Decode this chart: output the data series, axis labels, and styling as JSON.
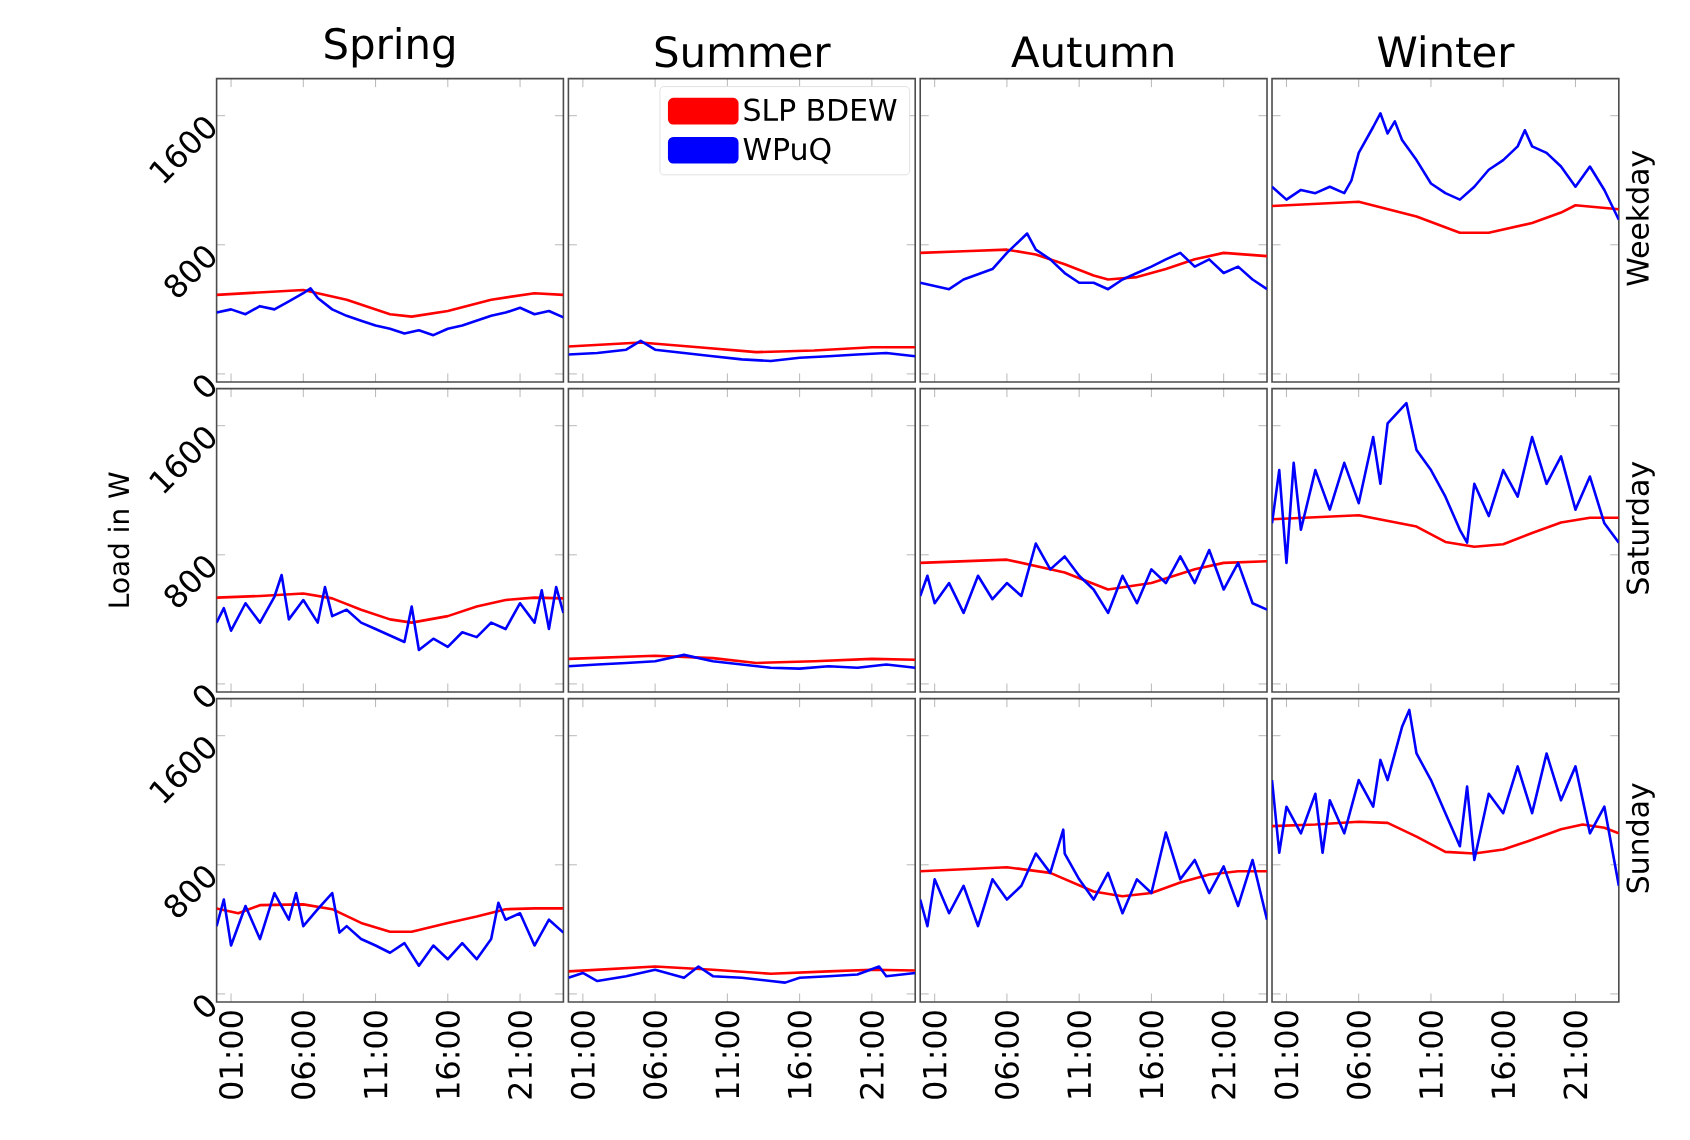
{
  "chart_data": [
    {
      "type": "line",
      "title": "Spring",
      "tick_labels": "y",
      "xlim": [
        0,
        24
      ],
      "ylim": [
        -50,
        1830
      ],
      "xticks": [
        1,
        6,
        11,
        16,
        21
      ],
      "yticks": [
        0,
        800,
        1600
      ],
      "series": [
        {
          "color": "#ff0000",
          "x": [
            0,
            3,
            6,
            9,
            12,
            13.5,
            16,
            19,
            22,
            24
          ],
          "values": [
            490,
            505,
            520,
            460,
            370,
            355,
            390,
            460,
            500,
            490
          ]
        },
        {
          "color": "#0000ff",
          "x": [
            0,
            1,
            2,
            3,
            4,
            5,
            6,
            6.5,
            7,
            8,
            9,
            10,
            11,
            12,
            13,
            14,
            15,
            16,
            17,
            18,
            19,
            20,
            21,
            22,
            23,
            24
          ],
          "values": [
            380,
            400,
            370,
            420,
            400,
            450,
            500,
            530,
            470,
            400,
            360,
            330,
            300,
            280,
            250,
            270,
            240,
            280,
            300,
            330,
            360,
            380,
            410,
            370,
            390,
            350
          ]
        }
      ]
    },
    {
      "type": "line",
      "title": "Summer",
      "tick_labels": false,
      "legend": "top right",
      "xlim": [
        0,
        24
      ],
      "ylim": [
        -50,
        1830
      ],
      "xticks": [
        1,
        6,
        11,
        16,
        21
      ],
      "yticks": [
        0,
        800,
        1600
      ],
      "series": [
        {
          "name": "SLP BDEW",
          "color": "#ff0000",
          "x": [
            0,
            5,
            9,
            13,
            17,
            21,
            24
          ],
          "values": [
            170,
            195,
            165,
            135,
            145,
            165,
            165
          ]
        },
        {
          "name": "WPuQ",
          "color": "#0000ff",
          "x": [
            0,
            2,
            4,
            5,
            6,
            8,
            10,
            12,
            14,
            16,
            18,
            20,
            22,
            24
          ],
          "values": [
            120,
            130,
            150,
            205,
            150,
            130,
            110,
            90,
            80,
            100,
            110,
            120,
            130,
            110
          ]
        }
      ]
    },
    {
      "type": "line",
      "title": "Autumn",
      "tick_labels": false,
      "xlim": [
        0,
        24
      ],
      "ylim": [
        -50,
        1830
      ],
      "xticks": [
        1,
        6,
        11,
        16,
        21
      ],
      "yticks": [
        0,
        800,
        1600
      ],
      "series": [
        {
          "color": "#ff0000",
          "x": [
            0,
            3,
            6,
            8,
            10,
            12,
            13,
            15,
            17,
            19,
            21,
            24
          ],
          "values": [
            750,
            760,
            770,
            740,
            680,
            610,
            585,
            600,
            650,
            710,
            750,
            730
          ]
        },
        {
          "color": "#0000ff",
          "x": [
            0,
            2,
            3,
            5,
            6,
            7.4,
            8,
            9,
            10,
            11,
            12,
            13,
            14,
            15,
            16,
            17,
            18,
            19,
            20,
            21,
            22,
            23,
            24
          ],
          "values": [
            565,
            525,
            585,
            650,
            750,
            870,
            770,
            710,
            625,
            565,
            565,
            525,
            585,
            625,
            665,
            710,
            750,
            665,
            710,
            625,
            665,
            585,
            525
          ]
        }
      ]
    },
    {
      "type": "line",
      "title": "Winter",
      "y2label": "Weekday",
      "tick_labels": false,
      "xlim": [
        0,
        24
      ],
      "ylim": [
        -50,
        1830
      ],
      "xticks": [
        1,
        6,
        11,
        16,
        21
      ],
      "yticks": [
        0,
        800,
        1600
      ],
      "series": [
        {
          "color": "#ff0000",
          "x": [
            0,
            6,
            10,
            13,
            15,
            18,
            20,
            21,
            24
          ],
          "values": [
            1040,
            1067,
            975,
            875,
            875,
            935,
            1000,
            1045,
            1020
          ]
        },
        {
          "color": "#0000ff",
          "x": [
            0,
            1,
            2,
            3,
            4,
            5,
            5.5,
            6,
            7,
            7.5,
            8,
            8.5,
            9,
            10,
            11,
            12,
            13,
            14,
            15,
            16,
            17,
            17.5,
            18,
            19,
            20,
            21,
            22,
            23,
            24
          ],
          "values": [
            1160,
            1080,
            1140,
            1120,
            1160,
            1120,
            1200,
            1370,
            1530,
            1615,
            1490,
            1565,
            1450,
            1325,
            1180,
            1120,
            1080,
            1160,
            1265,
            1325,
            1410,
            1510,
            1410,
            1370,
            1285,
            1160,
            1285,
            1140,
            955
          ]
        }
      ]
    },
    {
      "type": "line",
      "ylabel": "Load in W",
      "tick_labels": "y",
      "xlim": [
        0,
        24
      ],
      "ylim": [
        -50,
        1830
      ],
      "xticks": [
        1,
        6,
        11,
        16,
        21
      ],
      "yticks": [
        0,
        800,
        1600
      ],
      "series": [
        {
          "color": "#ff0000",
          "x": [
            0,
            3,
            6,
            8,
            10,
            12,
            13.5,
            16,
            18,
            20,
            22,
            24
          ],
          "values": [
            535,
            545,
            560,
            530,
            460,
            400,
            380,
            420,
            480,
            520,
            535,
            530
          ]
        },
        {
          "color": "#0000ff",
          "x": [
            0,
            0.5,
            1,
            2,
            3,
            4,
            4.5,
            5,
            6,
            7,
            7.5,
            8,
            9,
            10,
            11,
            12,
            13,
            13.5,
            14,
            15,
            16,
            17,
            18,
            19,
            20,
            21,
            22,
            22.5,
            23,
            23.5,
            24
          ],
          "values": [
            380,
            470,
            330,
            500,
            380,
            540,
            675,
            400,
            520,
            380,
            600,
            420,
            460,
            380,
            340,
            300,
            260,
            480,
            210,
            280,
            230,
            320,
            290,
            380,
            340,
            500,
            380,
            580,
            340,
            600,
            440
          ]
        }
      ]
    },
    {
      "type": "line",
      "tick_labels": false,
      "xlim": [
        0,
        24
      ],
      "ylim": [
        -50,
        1830
      ],
      "xticks": [
        1,
        6,
        11,
        16,
        21
      ],
      "yticks": [
        0,
        800,
        1600
      ],
      "series": [
        {
          "color": "#ff0000",
          "x": [
            0,
            6,
            10,
            13,
            17,
            21,
            24
          ],
          "values": [
            155,
            175,
            160,
            130,
            140,
            155,
            150
          ]
        },
        {
          "color": "#0000ff",
          "x": [
            0,
            2,
            4,
            6,
            8,
            10,
            12,
            14,
            16,
            18,
            20,
            22,
            24
          ],
          "values": [
            110,
            120,
            130,
            140,
            180,
            140,
            120,
            100,
            95,
            110,
            100,
            120,
            100
          ]
        }
      ]
    },
    {
      "type": "line",
      "tick_labels": false,
      "xlim": [
        0,
        24
      ],
      "ylim": [
        -50,
        1830
      ],
      "xticks": [
        1,
        6,
        11,
        16,
        21
      ],
      "yticks": [
        0,
        800,
        1600
      ],
      "series": [
        {
          "color": "#ff0000",
          "x": [
            0,
            6,
            10,
            13,
            16,
            19,
            21,
            24
          ],
          "values": [
            750,
            770,
            690,
            585,
            625,
            710,
            750,
            760
          ]
        },
        {
          "color": "#0000ff",
          "x": [
            0,
            0.5,
            1,
            2,
            3,
            4,
            5,
            6,
            7,
            8,
            9,
            10,
            11,
            12,
            13,
            14,
            15,
            16,
            17,
            18,
            19,
            20,
            21,
            22,
            23,
            24
          ],
          "values": [
            545,
            670,
            500,
            625,
            440,
            670,
            525,
            625,
            545,
            870,
            710,
            790,
            670,
            585,
            440,
            670,
            500,
            710,
            625,
            790,
            625,
            830,
            585,
            750,
            500,
            460
          ]
        }
      ]
    },
    {
      "type": "line",
      "y2label": "Saturday",
      "tick_labels": false,
      "xlim": [
        0,
        24
      ],
      "ylim": [
        -50,
        1830
      ],
      "xticks": [
        1,
        6,
        11,
        16,
        21
      ],
      "yticks": [
        0,
        800,
        1600
      ],
      "series": [
        {
          "color": "#ff0000",
          "x": [
            0,
            6,
            10,
            12,
            14,
            16,
            18,
            20,
            22,
            24
          ],
          "values": [
            1020,
            1045,
            975,
            880,
            850,
            865,
            935,
            1000,
            1030,
            1030
          ]
        },
        {
          "color": "#0000ff",
          "x": [
            0,
            0.5,
            1,
            1.5,
            2,
            3,
            4,
            5,
            6,
            7,
            7.5,
            8,
            9.3,
            10,
            11,
            12,
            13,
            13.5,
            14,
            15,
            16,
            17,
            18,
            19,
            20,
            21,
            22,
            23,
            24
          ],
          "values": [
            995,
            1325,
            750,
            1370,
            955,
            1325,
            1080,
            1370,
            1120,
            1530,
            1240,
            1615,
            1740,
            1450,
            1325,
            1160,
            955,
            875,
            1240,
            1040,
            1325,
            1160,
            1530,
            1240,
            1410,
            1080,
            1285,
            995,
            875
          ]
        }
      ]
    },
    {
      "type": "line",
      "xlim": [
        0,
        24
      ],
      "ylim": [
        -50,
        1830
      ],
      "xticks": [
        {
          "value": 1,
          "label": "01:00"
        },
        {
          "value": 6,
          "label": "06:00"
        },
        {
          "value": 11,
          "label": "11:00"
        },
        {
          "value": 16,
          "label": "16:00"
        },
        {
          "value": 21,
          "label": "21:00"
        }
      ],
      "yticks": [
        0,
        800,
        1600
      ],
      "series": [
        {
          "color": "#ff0000",
          "x": [
            0,
            1.5,
            3,
            6,
            8,
            10,
            12,
            13.5,
            16,
            18,
            20,
            22,
            24
          ],
          "values": [
            530,
            500,
            550,
            555,
            525,
            440,
            385,
            385,
            440,
            480,
            525,
            530,
            530
          ]
        },
        {
          "color": "#0000ff",
          "x": [
            0,
            0.5,
            1,
            2,
            3,
            4,
            5,
            5.5,
            6,
            7,
            8,
            8.5,
            9,
            10,
            11,
            12,
            13,
            14,
            15,
            16,
            17,
            18,
            19,
            19.5,
            20,
            21,
            22,
            23,
            24
          ],
          "values": [
            420,
            585,
            300,
            545,
            340,
            625,
            460,
            625,
            420,
            525,
            625,
            380,
            420,
            340,
            300,
            255,
            315,
            175,
            300,
            215,
            315,
            215,
            340,
            565,
            460,
            500,
            300,
            460,
            380
          ]
        }
      ]
    },
    {
      "type": "line",
      "tick_labels": "x",
      "xlim": [
        0,
        24
      ],
      "ylim": [
        -50,
        1830
      ],
      "xticks": [
        {
          "value": 1,
          "label": "01:00"
        },
        {
          "value": 6,
          "label": "06:00"
        },
        {
          "value": 11,
          "label": "11:00"
        },
        {
          "value": 16,
          "label": "16:00"
        },
        {
          "value": 21,
          "label": "21:00"
        }
      ],
      "yticks": [
        0,
        800,
        1600
      ],
      "series": [
        {
          "color": "#ff0000",
          "x": [
            0,
            6,
            10,
            14,
            18,
            21,
            24
          ],
          "values": [
            140,
            170,
            150,
            125,
            140,
            150,
            145
          ]
        },
        {
          "color": "#0000ff",
          "x": [
            0,
            1,
            2,
            4,
            6,
            8,
            9,
            10,
            12,
            14,
            15,
            16,
            18,
            20,
            21.5,
            22,
            24
          ],
          "values": [
            100,
            130,
            80,
            110,
            150,
            100,
            170,
            110,
            100,
            80,
            70,
            100,
            110,
            120,
            170,
            110,
            130
          ]
        }
      ]
    },
    {
      "type": "line",
      "tick_labels": "x",
      "xlim": [
        0,
        24
      ],
      "ylim": [
        -50,
        1830
      ],
      "xticks": [
        {
          "value": 1,
          "label": "01:00"
        },
        {
          "value": 6,
          "label": "06:00"
        },
        {
          "value": 11,
          "label": "11:00"
        },
        {
          "value": 16,
          "label": "16:00"
        },
        {
          "value": 21,
          "label": "21:00"
        }
      ],
      "yticks": [
        0,
        800,
        1600
      ],
      "series": [
        {
          "color": "#ff0000",
          "x": [
            0,
            6,
            9,
            12,
            14,
            16,
            18,
            20,
            22,
            24
          ],
          "values": [
            760,
            785,
            750,
            635,
            605,
            625,
            690,
            740,
            760,
            760
          ]
        },
        {
          "color": "#0000ff",
          "x": [
            0,
            0.5,
            1,
            2,
            3,
            4,
            5,
            6,
            7,
            8,
            9,
            9.9,
            10,
            11,
            12,
            13,
            14,
            15,
            16,
            17,
            18,
            19,
            20,
            21,
            22,
            23,
            24
          ],
          "values": [
            585,
            420,
            710,
            500,
            670,
            420,
            710,
            585,
            670,
            870,
            750,
            1018,
            870,
            710,
            585,
            750,
            500,
            710,
            625,
            1000,
            710,
            830,
            625,
            790,
            545,
            830,
            460
          ]
        }
      ]
    },
    {
      "type": "line",
      "y2label": "Sunday",
      "tick_labels": "x",
      "xlim": [
        0,
        24
      ],
      "ylim": [
        -50,
        1830
      ],
      "xticks": [
        {
          "value": 1,
          "label": "01:00"
        },
        {
          "value": 6,
          "label": "06:00"
        },
        {
          "value": 11,
          "label": "11:00"
        },
        {
          "value": 16,
          "label": "16:00"
        },
        {
          "value": 21,
          "label": "21:00"
        }
      ],
      "yticks": [
        0,
        800,
        1600
      ],
      "series": [
        {
          "color": "#ff0000",
          "x": [
            0,
            3,
            6,
            8,
            10,
            12,
            14,
            16,
            18,
            20,
            21.5,
            23,
            24
          ],
          "values": [
            1040,
            1050,
            1067,
            1060,
            975,
            880,
            870,
            895,
            955,
            1020,
            1050,
            1030,
            995
          ]
        },
        {
          "color": "#0000ff",
          "x": [
            0,
            0.5,
            1,
            2,
            3,
            3.5,
            4,
            5,
            6,
            7,
            7.5,
            8,
            9,
            9.5,
            10,
            11,
            12,
            13,
            13.5,
            14,
            15,
            16,
            17,
            18,
            19,
            20,
            21,
            22,
            23,
            24
          ],
          "values": [
            1325,
            875,
            1160,
            995,
            1240,
            875,
            1200,
            995,
            1325,
            1160,
            1450,
            1325,
            1655,
            1760,
            1490,
            1325,
            1120,
            915,
            1285,
            830,
            1240,
            1120,
            1410,
            1120,
            1490,
            1200,
            1410,
            995,
            1160,
            670
          ]
        }
      ]
    }
  ]
}
